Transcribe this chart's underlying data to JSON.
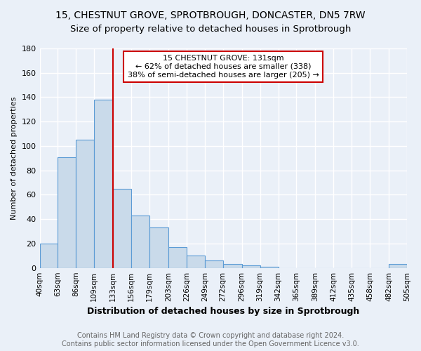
{
  "title": "15, CHESTNUT GROVE, SPROTBROUGH, DONCASTER, DN5 7RW",
  "subtitle": "Size of property relative to detached houses in Sprotbrough",
  "xlabel": "Distribution of detached houses by size in Sprotbrough",
  "ylabel": "Number of detached properties",
  "bar_values": [
    20,
    91,
    105,
    138,
    65,
    43,
    33,
    17,
    10,
    6,
    3,
    2,
    1,
    0,
    0,
    0,
    0,
    0,
    0,
    3
  ],
  "bin_edges": [
    40,
    63,
    86,
    109,
    133,
    156,
    179,
    203,
    226,
    249,
    272,
    296,
    319,
    342,
    365,
    389,
    412,
    435,
    458,
    482,
    505
  ],
  "bar_color": "#c9daea",
  "bar_edge_color": "#5b9bd5",
  "property_line_x": 133,
  "property_line_color": "#cc0000",
  "ylim": [
    0,
    180
  ],
  "yticks": [
    0,
    20,
    40,
    60,
    80,
    100,
    120,
    140,
    160,
    180
  ],
  "annotation_text": "15 CHESTNUT GROVE: 131sqm\n← 62% of detached houses are smaller (338)\n38% of semi-detached houses are larger (205) →",
  "annotation_box_color": "#ffffff",
  "annotation_box_edge_color": "#cc0000",
  "footer_text": "Contains HM Land Registry data © Crown copyright and database right 2024.\nContains public sector information licensed under the Open Government Licence v3.0.",
  "background_color": "#eaf0f8",
  "plot_bg_color": "#eaf0f8",
  "grid_color": "#ffffff",
  "title_fontsize": 10,
  "subtitle_fontsize": 9.5,
  "xlabel_fontsize": 9,
  "ylabel_fontsize": 8,
  "annotation_fontsize": 8,
  "footer_fontsize": 7
}
